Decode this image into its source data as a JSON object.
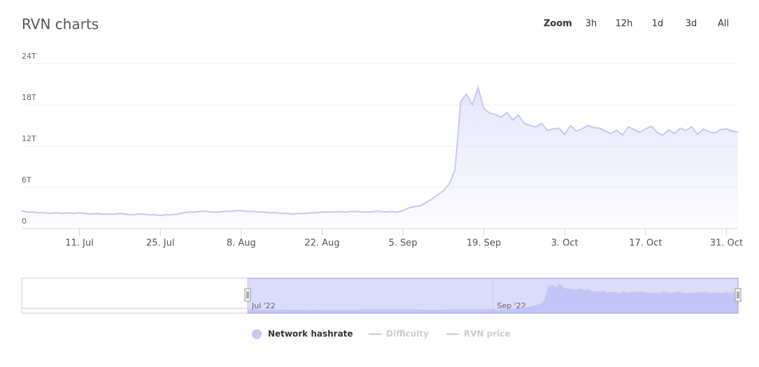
{
  "chart_data": {
    "type": "area",
    "title": "RVN charts",
    "range_selector": {
      "label": "Zoom",
      "buttons": [
        "3h",
        "12h",
        "1d",
        "3d",
        "All"
      ]
    },
    "x": [
      "2022-07-01",
      "2022-07-02",
      "2022-07-03",
      "2022-07-04",
      "2022-07-05",
      "2022-07-06",
      "2022-07-07",
      "2022-07-08",
      "2022-07-09",
      "2022-07-10",
      "2022-07-11",
      "2022-07-12",
      "2022-07-13",
      "2022-07-14",
      "2022-07-15",
      "2022-07-16",
      "2022-07-17",
      "2022-07-18",
      "2022-07-19",
      "2022-07-20",
      "2022-07-21",
      "2022-07-22",
      "2022-07-23",
      "2022-07-24",
      "2022-07-25",
      "2022-07-26",
      "2022-07-27",
      "2022-07-28",
      "2022-07-29",
      "2022-07-30",
      "2022-07-31",
      "2022-08-01",
      "2022-08-02",
      "2022-08-03",
      "2022-08-04",
      "2022-08-05",
      "2022-08-06",
      "2022-08-07",
      "2022-08-08",
      "2022-08-09",
      "2022-08-10",
      "2022-08-11",
      "2022-08-12",
      "2022-08-13",
      "2022-08-14",
      "2022-08-15",
      "2022-08-16",
      "2022-08-17",
      "2022-08-18",
      "2022-08-19",
      "2022-08-20",
      "2022-08-21",
      "2022-08-22",
      "2022-08-23",
      "2022-08-24",
      "2022-08-25",
      "2022-08-26",
      "2022-08-27",
      "2022-08-28",
      "2022-08-29",
      "2022-08-30",
      "2022-08-31",
      "2022-09-01",
      "2022-09-02",
      "2022-09-03",
      "2022-09-04",
      "2022-09-05",
      "2022-09-06",
      "2022-09-07",
      "2022-09-08",
      "2022-09-09",
      "2022-09-10",
      "2022-09-11",
      "2022-09-12",
      "2022-09-13",
      "2022-09-14",
      "2022-09-15",
      "2022-09-16",
      "2022-09-17",
      "2022-09-18",
      "2022-09-19",
      "2022-09-20",
      "2022-09-21",
      "2022-09-22",
      "2022-09-23",
      "2022-09-24",
      "2022-09-25",
      "2022-09-26",
      "2022-09-27",
      "2022-09-28",
      "2022-09-29",
      "2022-09-30",
      "2022-10-01",
      "2022-10-02",
      "2022-10-03",
      "2022-10-04",
      "2022-10-05",
      "2022-10-06",
      "2022-10-07",
      "2022-10-08",
      "2022-10-09",
      "2022-10-10",
      "2022-10-11",
      "2022-10-12",
      "2022-10-13",
      "2022-10-14",
      "2022-10-15",
      "2022-10-16",
      "2022-10-17",
      "2022-10-18",
      "2022-10-19",
      "2022-10-20",
      "2022-10-21",
      "2022-10-22",
      "2022-10-23",
      "2022-10-24",
      "2022-10-25",
      "2022-10-26",
      "2022-10-27",
      "2022-10-28",
      "2022-10-29",
      "2022-10-30",
      "2022-10-31",
      "2022-11-01",
      "2022-11-02"
    ],
    "series": [
      {
        "name": "Network hashrate",
        "color": "#c5c8f5",
        "visible": true,
        "values": [
          2.6,
          2.4,
          2.4,
          2.3,
          2.3,
          2.2,
          2.3,
          2.2,
          2.3,
          2.2,
          2.3,
          2.2,
          2.1,
          2.2,
          2.1,
          2.1,
          2.1,
          2.2,
          2.1,
          2.0,
          2.1,
          2.1,
          2.0,
          2.0,
          1.9,
          2.0,
          2.0,
          2.1,
          2.3,
          2.4,
          2.4,
          2.5,
          2.5,
          2.4,
          2.4,
          2.5,
          2.5,
          2.6,
          2.6,
          2.5,
          2.5,
          2.4,
          2.4,
          2.3,
          2.3,
          2.2,
          2.2,
          2.1,
          2.2,
          2.2,
          2.3,
          2.3,
          2.4,
          2.4,
          2.4,
          2.5,
          2.4,
          2.5,
          2.5,
          2.4,
          2.4,
          2.5,
          2.5,
          2.4,
          2.5,
          2.4,
          2.6,
          3.0,
          3.2,
          3.3,
          3.8,
          4.3,
          4.9,
          5.5,
          6.5,
          8.5,
          18.5,
          19.6,
          18.0,
          20.5,
          17.5,
          16.8,
          16.6,
          16.2,
          16.9,
          15.8,
          16.5,
          15.3,
          15.0,
          14.8,
          15.3,
          14.3,
          14.5,
          14.6,
          13.7,
          15.0,
          14.2,
          14.5,
          15.0,
          14.7,
          14.6,
          14.2,
          13.8,
          14.3,
          13.6,
          14.8,
          14.4,
          14.0,
          14.5,
          14.9,
          14.0,
          13.6,
          14.4,
          13.8,
          14.6,
          14.3,
          14.8,
          13.7,
          14.5,
          14.1,
          13.9,
          14.4,
          14.5,
          14.2,
          14.0
        ]
      },
      {
        "name": "Difficulty",
        "color": "#cccccc",
        "visible": false
      },
      {
        "name": "RVN price",
        "color": "#cccccc",
        "visible": false
      }
    ],
    "xlim": [
      "2022-07-01",
      "2022-11-02"
    ],
    "xticks": [
      {
        "value": "2022-07-11",
        "label": "11. Jul"
      },
      {
        "value": "2022-07-25",
        "label": "25. Jul"
      },
      {
        "value": "2022-08-08",
        "label": "8. Aug"
      },
      {
        "value": "2022-08-22",
        "label": "22. Aug"
      },
      {
        "value": "2022-09-05",
        "label": "5. Sep"
      },
      {
        "value": "2022-09-19",
        "label": "19. Sep"
      },
      {
        "value": "2022-10-03",
        "label": "3. Oct"
      },
      {
        "value": "2022-10-17",
        "label": "17. Oct"
      },
      {
        "value": "2022-10-31",
        "label": "31. Oct"
      }
    ],
    "ylim": [
      0,
      24
    ],
    "yticks": [
      0,
      {
        "value": 6,
        "label": "6T"
      },
      {
        "value": 12,
        "label": "12T"
      },
      {
        "value": 18,
        "label": "18T"
      },
      {
        "value": 24,
        "label": "24T"
      }
    ],
    "grid": true,
    "navigator_ticks": [
      {
        "value": "2022-07-01",
        "label": "Jul '22"
      },
      {
        "value": "2022-09-01",
        "label": "Sep '22"
      }
    ]
  }
}
